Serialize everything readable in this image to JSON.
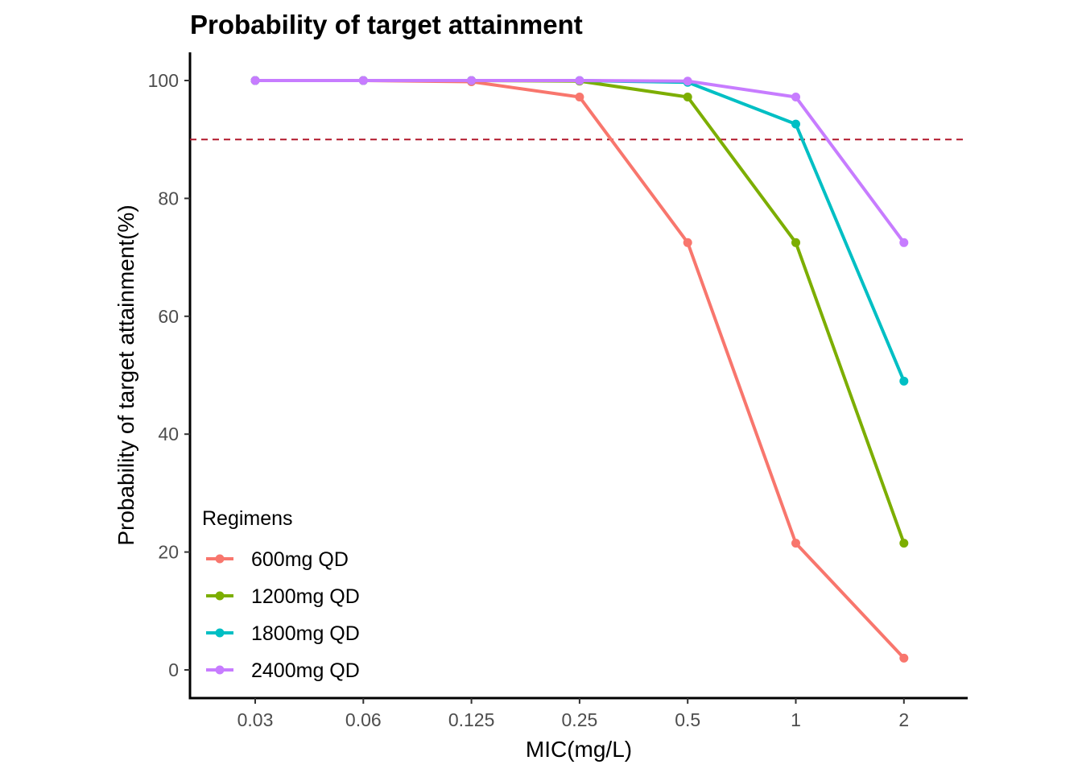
{
  "chart_data": {
    "type": "line",
    "title": "Probability of target attainment",
    "xlabel": "MIC(mg/L)",
    "ylabel": "Probability of target attainment(%)",
    "categories": [
      "0.03",
      "0.06",
      "0.125",
      "0.25",
      "0.5",
      "1",
      "2"
    ],
    "yticks": [
      "0",
      "20",
      "40",
      "60",
      "80",
      "100"
    ],
    "ylim": [
      -5,
      105
    ],
    "grid": false,
    "reference_line": {
      "y": 90,
      "style": "dashed",
      "color": "#b2182b"
    },
    "legend": {
      "title": "Regimens",
      "position": "bottom-left"
    },
    "series": [
      {
        "name": "600mg QD",
        "color": "#F8766D",
        "values": [
          100,
          100,
          99.8,
          97.2,
          72.5,
          21.5,
          2
        ]
      },
      {
        "name": "1200mg QD",
        "color": "#7CAE00",
        "values": [
          100,
          100,
          100,
          99.9,
          97.2,
          72.5,
          21.5
        ]
      },
      {
        "name": "1800mg QD",
        "color": "#00BFC4",
        "values": [
          100,
          100,
          100,
          100,
          99.7,
          92.6,
          49
        ]
      },
      {
        "name": "2400mg QD",
        "color": "#C77CFF",
        "values": [
          100,
          100,
          100,
          100,
          99.9,
          97.2,
          72.5
        ]
      }
    ]
  }
}
